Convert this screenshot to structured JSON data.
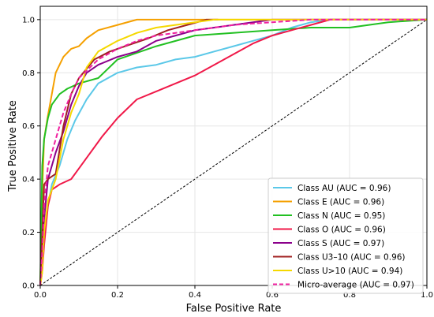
{
  "chart_data": {
    "type": "line",
    "xlabel": "False Positive Rate",
    "ylabel": "True Positive Rate",
    "xlim": [
      0.0,
      1.0
    ],
    "ylim": [
      0.0,
      1.05
    ],
    "xticks": [
      "0.0",
      "0.2",
      "0.4",
      "0.6",
      "0.8",
      "1.0"
    ],
    "yticks": [
      "0.0",
      "0.2",
      "0.4",
      "0.6",
      "0.8",
      "1.0"
    ],
    "grid": true,
    "legend_position": "lower-right",
    "diagonal": {
      "color": "#000000",
      "style": "dashed",
      "points": [
        [
          0,
          0
        ],
        [
          1,
          1
        ]
      ]
    },
    "series": [
      {
        "name": "Class AU (AUC = 0.96)",
        "color": "#5bc8e8",
        "style": "solid",
        "points": [
          [
            0,
            0
          ],
          [
            0.01,
            0.22
          ],
          [
            0.02,
            0.3
          ],
          [
            0.03,
            0.38
          ],
          [
            0.05,
            0.45
          ],
          [
            0.07,
            0.55
          ],
          [
            0.09,
            0.62
          ],
          [
            0.12,
            0.7
          ],
          [
            0.15,
            0.76
          ],
          [
            0.2,
            0.8
          ],
          [
            0.25,
            0.82
          ],
          [
            0.3,
            0.83
          ],
          [
            0.35,
            0.85
          ],
          [
            0.4,
            0.86
          ],
          [
            0.45,
            0.88
          ],
          [
            0.5,
            0.9
          ],
          [
            0.55,
            0.92
          ],
          [
            0.6,
            0.94
          ],
          [
            0.65,
            0.97
          ],
          [
            0.7,
            0.99
          ],
          [
            0.75,
            1.0
          ],
          [
            1.0,
            1.0
          ]
        ]
      },
      {
        "name": "Class E (AUC = 0.96)",
        "color": "#f5a000",
        "style": "solid",
        "points": [
          [
            0,
            0
          ],
          [
            0.005,
            0.35
          ],
          [
            0.01,
            0.55
          ],
          [
            0.02,
            0.64
          ],
          [
            0.03,
            0.72
          ],
          [
            0.04,
            0.8
          ],
          [
            0.06,
            0.86
          ],
          [
            0.08,
            0.89
          ],
          [
            0.1,
            0.9
          ],
          [
            0.12,
            0.93
          ],
          [
            0.15,
            0.96
          ],
          [
            0.2,
            0.98
          ],
          [
            0.25,
            1.0
          ],
          [
            1.0,
            1.0
          ]
        ]
      },
      {
        "name": "Class N (AUC = 0.95)",
        "color": "#22c022",
        "style": "solid",
        "points": [
          [
            0,
            0
          ],
          [
            0.005,
            0.45
          ],
          [
            0.01,
            0.55
          ],
          [
            0.02,
            0.63
          ],
          [
            0.03,
            0.68
          ],
          [
            0.05,
            0.72
          ],
          [
            0.07,
            0.74
          ],
          [
            0.1,
            0.76
          ],
          [
            0.15,
            0.78
          ],
          [
            0.2,
            0.85
          ],
          [
            0.3,
            0.9
          ],
          [
            0.4,
            0.94
          ],
          [
            0.6,
            0.96
          ],
          [
            0.7,
            0.97
          ],
          [
            0.8,
            0.97
          ],
          [
            0.9,
            0.99
          ],
          [
            1.0,
            1.0
          ]
        ]
      },
      {
        "name": "Class O (AUC = 0.96)",
        "color": "#f01848",
        "style": "solid",
        "points": [
          [
            0,
            0
          ],
          [
            0.005,
            0.05
          ],
          [
            0.01,
            0.15
          ],
          [
            0.02,
            0.3
          ],
          [
            0.03,
            0.36
          ],
          [
            0.05,
            0.38
          ],
          [
            0.08,
            0.4
          ],
          [
            0.1,
            0.44
          ],
          [
            0.13,
            0.5
          ],
          [
            0.16,
            0.56
          ],
          [
            0.2,
            0.63
          ],
          [
            0.25,
            0.7
          ],
          [
            0.3,
            0.73
          ],
          [
            0.35,
            0.76
          ],
          [
            0.4,
            0.79
          ],
          [
            0.45,
            0.83
          ],
          [
            0.5,
            0.87
          ],
          [
            0.55,
            0.91
          ],
          [
            0.6,
            0.94
          ],
          [
            0.65,
            0.96
          ],
          [
            0.7,
            0.98
          ],
          [
            0.75,
            1.0
          ],
          [
            1.0,
            1.0
          ]
        ]
      },
      {
        "name": "Class S (AUC = 0.97)",
        "color": "#8b008b",
        "style": "solid",
        "points": [
          [
            0,
            0
          ],
          [
            0.01,
            0.25
          ],
          [
            0.02,
            0.4
          ],
          [
            0.04,
            0.5
          ],
          [
            0.06,
            0.58
          ],
          [
            0.08,
            0.68
          ],
          [
            0.1,
            0.75
          ],
          [
            0.12,
            0.8
          ],
          [
            0.15,
            0.83
          ],
          [
            0.2,
            0.86
          ],
          [
            0.25,
            0.88
          ],
          [
            0.3,
            0.92
          ],
          [
            0.35,
            0.94
          ],
          [
            0.4,
            0.96
          ],
          [
            0.45,
            0.97
          ],
          [
            0.5,
            0.98
          ],
          [
            0.6,
            1.0
          ],
          [
            1.0,
            1.0
          ]
        ]
      },
      {
        "name": "Class U3–10 (AUC = 0.96)",
        "color": "#a02020",
        "style": "solid",
        "points": [
          [
            0,
            0
          ],
          [
            0.01,
            0.38
          ],
          [
            0.02,
            0.4
          ],
          [
            0.04,
            0.42
          ],
          [
            0.06,
            0.6
          ],
          [
            0.08,
            0.72
          ],
          [
            0.1,
            0.78
          ],
          [
            0.14,
            0.85
          ],
          [
            0.18,
            0.88
          ],
          [
            0.22,
            0.9
          ],
          [
            0.28,
            0.93
          ],
          [
            0.33,
            0.96
          ],
          [
            0.38,
            0.98
          ],
          [
            0.43,
            1.0
          ],
          [
            0.46,
            1.0
          ]
        ]
      },
      {
        "name": "Class U>10 (AUC = 0.94)",
        "color": "#f5d800",
        "style": "solid",
        "points": [
          [
            0,
            0
          ],
          [
            0.005,
            0.05
          ],
          [
            0.01,
            0.2
          ],
          [
            0.02,
            0.32
          ],
          [
            0.04,
            0.4
          ],
          [
            0.06,
            0.55
          ],
          [
            0.08,
            0.65
          ],
          [
            0.1,
            0.72
          ],
          [
            0.12,
            0.82
          ],
          [
            0.15,
            0.88
          ],
          [
            0.2,
            0.92
          ],
          [
            0.25,
            0.95
          ],
          [
            0.3,
            0.97
          ],
          [
            0.35,
            0.98
          ],
          [
            0.4,
            0.99
          ],
          [
            0.45,
            1.0
          ],
          [
            1.0,
            1.0
          ]
        ]
      },
      {
        "name": "Micro-average (AUC = 0.97)",
        "color": "#f020a0",
        "style": "dashed",
        "points": [
          [
            0,
            0
          ],
          [
            0.005,
            0.12
          ],
          [
            0.01,
            0.3
          ],
          [
            0.02,
            0.45
          ],
          [
            0.04,
            0.55
          ],
          [
            0.06,
            0.65
          ],
          [
            0.08,
            0.72
          ],
          [
            0.1,
            0.78
          ],
          [
            0.15,
            0.85
          ],
          [
            0.2,
            0.89
          ],
          [
            0.25,
            0.92
          ],
          [
            0.3,
            0.94
          ],
          [
            0.35,
            0.95
          ],
          [
            0.4,
            0.96
          ],
          [
            0.45,
            0.97
          ],
          [
            0.5,
            0.98
          ],
          [
            0.6,
            0.99
          ],
          [
            0.7,
            1.0
          ],
          [
            1.0,
            1.0
          ]
        ]
      }
    ]
  }
}
